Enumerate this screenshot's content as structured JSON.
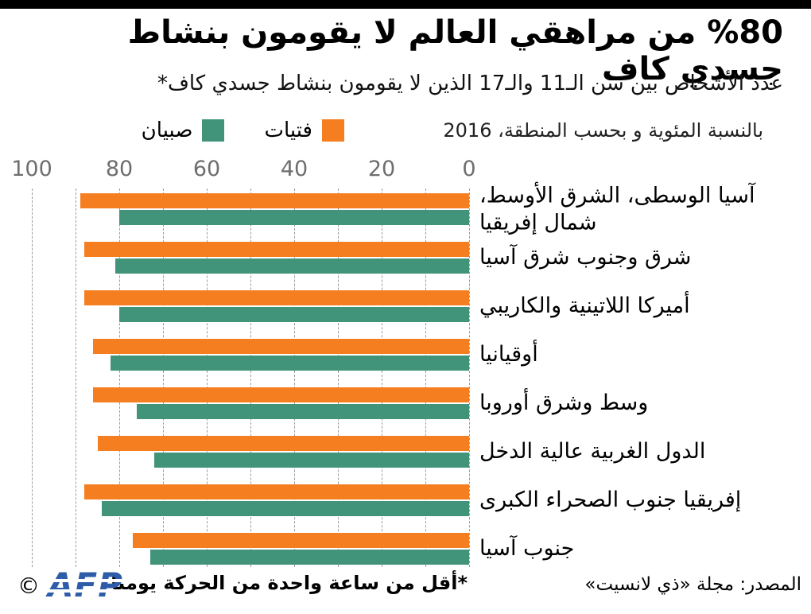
{
  "header": {
    "title": "%80 من مراهقي العالم لا يقومون بنشاط جسدي كاف",
    "subtitle": "عدد الأشخاص بين سن الـ11 والـ17 الذين لا يقومون بنشاط جسدي كاف*",
    "period_line": "بالنسبة المئوية و بحسب المنطقة، 2016"
  },
  "legend": {
    "girls_label": "فتيات",
    "boys_label": "صبيان"
  },
  "colors": {
    "girls": "#F57E20",
    "boys": "#41947A",
    "gridline": "#9a9a9a",
    "axis_text": "#6e6e6e",
    "afp_blue": "#2E5CA8",
    "top_bar": "#000000"
  },
  "chart_data": {
    "type": "bar",
    "orientation": "horizontal",
    "direction": "rtl, zero at right",
    "title": "%80 من مراهقي العالم لا يقومون بنشاط جسدي كاف",
    "xlabel": "النسبة المئوية",
    "x_ticks": [
      100,
      80,
      60,
      40,
      20,
      0
    ],
    "xlim": [
      0,
      100
    ],
    "grid": "dashed vertical lines every 10",
    "legend_position": "top",
    "categories": [
      "آسيا الوسطى، الشرق الأوسط،\nشمال إفريقيا",
      "شرق وجنوب شرق آسيا",
      "أميركا اللاتينية والكاريبي",
      "أوقيانيا",
      "وسط وشرق أوروبا",
      "الدول الغربية عالية الدخل",
      "إفريقيا جنوب الصحراء الكبرى",
      "جنوب آسيا"
    ],
    "series": [
      {
        "name": "فتيات",
        "color": "#F57E20",
        "values": [
          89,
          88,
          88,
          86,
          86,
          85,
          88,
          77
        ]
      },
      {
        "name": "صبيان",
        "color": "#41947A",
        "values": [
          80,
          81,
          80,
          82,
          76,
          72,
          84,
          73
        ]
      }
    ]
  },
  "footer": {
    "footnote": "*أقل من ساعة واحدة من الحركة يوميا",
    "source": "المصدر: مجلة «ذي لانسيت»",
    "copyright": "©",
    "logo": "AFP"
  }
}
